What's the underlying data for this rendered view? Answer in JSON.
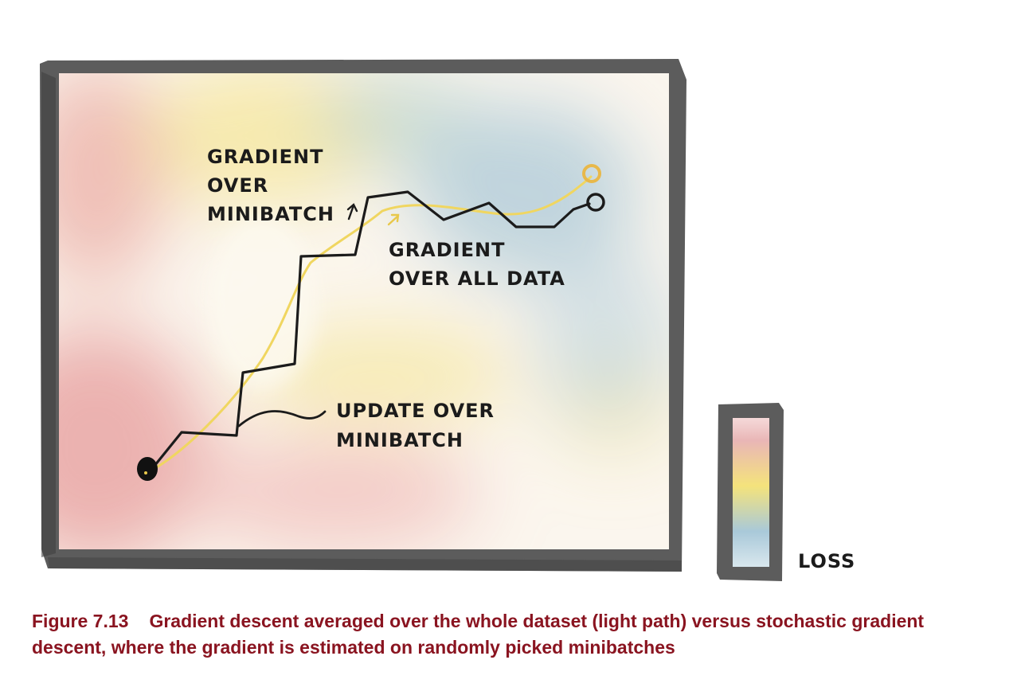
{
  "diagram": {
    "labels": {
      "gradient_over_minibatch": [
        "GRADIENT",
        "OVER",
        "MINIBATCH"
      ],
      "gradient_over_all_data": [
        "GRADIENT",
        "OVER ALL DATA"
      ],
      "update_over_minibatch": [
        "UPDATE OVER",
        "MINIBATCH"
      ],
      "loss": "LOSS"
    },
    "colors": {
      "frame": "#5a5a5a",
      "stochastic_path": "#1b1b1b",
      "full_batch_path": "#f0d660",
      "full_batch_end": "#e8b84a",
      "loss_high": "#e8a0a0",
      "loss_mid": "#f5e27a",
      "loss_low": "#a8c8d8"
    }
  },
  "caption": {
    "number": "Figure 7.13",
    "text": "Gradient descent averaged over the whole dataset (light path) versus stochastic gradient descent, where the gradient is estimated on randomly picked minibatches"
  }
}
